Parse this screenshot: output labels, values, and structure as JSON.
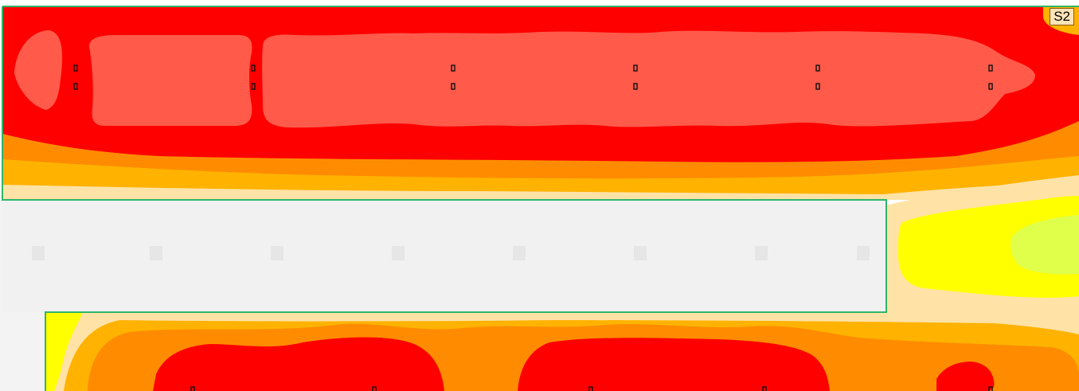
{
  "sheet_label": "S2",
  "legend_colors": {
    "level_1_light_yellow": "#ffe2a6",
    "level_2_yellow": "#ffff00",
    "level_3_orange_light": "#ffb300",
    "level_4_orange": "#ff8c00",
    "level_5_red": "#ff0000",
    "level_6_salmon": "#ff5a4a",
    "level_lime": "#dfff4a",
    "excluded_area": "#f1f1f1",
    "boundary": "#2fb56a"
  }
}
